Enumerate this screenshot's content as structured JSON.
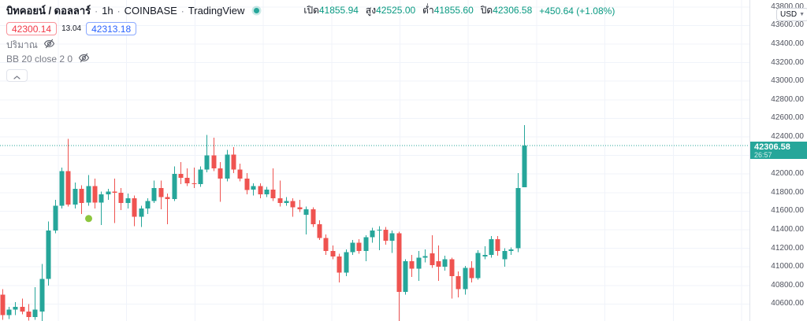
{
  "header": {
    "symbol_title": "บิทคอยน์ / ดอลลาร์",
    "separator": "·",
    "interval": "1h",
    "exchange": "COINBASE",
    "platform": "TradingView",
    "ohlc": {
      "open_label": "เปิด",
      "open_value": "41855.94",
      "high_label": "สูง",
      "high_value": "42525.00",
      "low_label": "ต่ำ",
      "low_value": "41855.60",
      "close_label": "ปิด",
      "close_value": "42306.58",
      "change_value": "+450.64 (+1.08%)"
    },
    "bid": "42300.14",
    "spread": "13.04",
    "ask": "42313.18",
    "indicator_rows": [
      {
        "label": "ปริมาณ",
        "hidden": true
      },
      {
        "label": "BB 20 close 2 0",
        "hidden": true
      }
    ]
  },
  "axis": {
    "currency_label": "USD",
    "last_price_label": "42306.58",
    "countdown": "26:57",
    "ticks": [
      {
        "price": 43800,
        "label": "43800.00"
      },
      {
        "price": 43600,
        "label": "43600.00"
      },
      {
        "price": 43400,
        "label": "43400.00"
      },
      {
        "price": 43200,
        "label": "43200.00"
      },
      {
        "price": 43000,
        "label": "43000.00"
      },
      {
        "price": 42800,
        "label": "42800.00"
      },
      {
        "price": 42600,
        "label": "42600.00"
      },
      {
        "price": 42400,
        "label": "42400.00"
      },
      {
        "price": 42200,
        "label": "42200.00"
      },
      {
        "price": 42000,
        "label": "42000.00"
      },
      {
        "price": 41800,
        "label": "41800.00"
      },
      {
        "price": 41600,
        "label": "41600.00"
      },
      {
        "price": 41400,
        "label": "41400.00"
      },
      {
        "price": 41200,
        "label": "41200.00"
      },
      {
        "price": 41000,
        "label": "41000.00"
      },
      {
        "price": 40800,
        "label": "40800.00"
      },
      {
        "price": 40600,
        "label": "40600.00"
      }
    ]
  },
  "chart_data": {
    "type": "candlestick",
    "title": "บิทคอยน์ / ดอลลาร์ · 1h · COINBASE",
    "interval": "1h",
    "last_price": 42306.58,
    "price_axis_range": [
      40450,
      43850
    ],
    "grid": true,
    "current_bar": {
      "open": 41855.94,
      "high": 42525.0,
      "low": 41855.6,
      "close": 42306.58,
      "change": "+450.64",
      "change_pct": "+1.08%"
    },
    "marker": {
      "candle_index": 13,
      "price": 41520
    },
    "candles_ohlc": [
      [
        40700,
        40760,
        40430,
        40480
      ],
      [
        40480,
        40570,
        40440,
        40540
      ],
      [
        40540,
        40620,
        40480,
        40570
      ],
      [
        40570,
        40660,
        40490,
        40520
      ],
      [
        40520,
        40600,
        40420,
        40460
      ],
      [
        40460,
        40780,
        40430,
        40540
      ],
      [
        40520,
        41030,
        40400,
        40870
      ],
      [
        40870,
        41490,
        40800,
        41390
      ],
      [
        41390,
        41720,
        41360,
        41660
      ],
      [
        41660,
        42070,
        41630,
        42030
      ],
      [
        42030,
        42380,
        41650,
        41670
      ],
      [
        41670,
        41910,
        41630,
        41840
      ],
      [
        41840,
        41880,
        41570,
        41690
      ],
      [
        41690,
        41990,
        41660,
        41870
      ],
      [
        41870,
        41950,
        41630,
        41690
      ],
      [
        41690,
        41810,
        41450,
        41780
      ],
      [
        41780,
        41840,
        41720,
        41810
      ],
      [
        41810,
        41950,
        41470,
        41800
      ],
      [
        41800,
        41850,
        41610,
        41690
      ],
      [
        41690,
        41790,
        41630,
        41740
      ],
      [
        41740,
        41770,
        41440,
        41540
      ],
      [
        41540,
        41660,
        41430,
        41630
      ],
      [
        41630,
        41740,
        41570,
        41710
      ],
      [
        41710,
        41930,
        41690,
        41850
      ],
      [
        41850,
        41930,
        41620,
        41750
      ],
      [
        41750,
        41790,
        41460,
        41730
      ],
      [
        41730,
        42080,
        41710,
        42000
      ],
      [
        42000,
        42130,
        41890,
        41960
      ],
      [
        41960,
        42060,
        41870,
        41900
      ],
      [
        41900,
        42070,
        41850,
        41890
      ],
      [
        41890,
        42080,
        41860,
        42050
      ],
      [
        42050,
        42420,
        42020,
        42200
      ],
      [
        42200,
        42390,
        42030,
        42060
      ],
      [
        42060,
        42130,
        41700,
        41950
      ],
      [
        41950,
        42260,
        41920,
        42210
      ],
      [
        42210,
        42290,
        42010,
        42050
      ],
      [
        42050,
        42110,
        41920,
        41950
      ],
      [
        41950,
        42010,
        41780,
        41830
      ],
      [
        41830,
        41900,
        41770,
        41870
      ],
      [
        41870,
        41900,
        41740,
        41780
      ],
      [
        41780,
        41860,
        41750,
        41830
      ],
      [
        41830,
        42060,
        41710,
        41740
      ],
      [
        41740,
        41930,
        41650,
        41690
      ],
      [
        41690,
        41750,
        41660,
        41710
      ],
      [
        41710,
        41740,
        41540,
        41640
      ],
      [
        41640,
        41720,
        41590,
        41620
      ],
      [
        41560,
        41650,
        41350,
        41620
      ],
      [
        41620,
        41640,
        41430,
        41460
      ],
      [
        41460,
        41500,
        41290,
        41310
      ],
      [
        41310,
        41350,
        41130,
        41170
      ],
      [
        41170,
        41230,
        41080,
        41110
      ],
      [
        41110,
        41140,
        40830,
        40940
      ],
      [
        40940,
        41190,
        40900,
        41160
      ],
      [
        41160,
        41290,
        41130,
        41260
      ],
      [
        41260,
        41300,
        41140,
        41170
      ],
      [
        41170,
        41340,
        41060,
        41320
      ],
      [
        41320,
        41420,
        41260,
        41390
      ],
      [
        41390,
        41440,
        41180,
        41400
      ],
      [
        41400,
        41430,
        41240,
        41280
      ],
      [
        41280,
        41390,
        41150,
        41360
      ],
      [
        41360,
        41380,
        40410,
        40730
      ],
      [
        40730,
        41080,
        40700,
        41060
      ],
      [
        41060,
        41130,
        40890,
        40980
      ],
      [
        40980,
        41170,
        40850,
        41100
      ],
      [
        41100,
        41190,
        41050,
        41115
      ],
      [
        41145,
        41340,
        40990,
        41020
      ],
      [
        41060,
        41230,
        40850,
        41000
      ],
      [
        41000,
        41120,
        40960,
        41080
      ],
      [
        41080,
        41100,
        40660,
        40900
      ],
      [
        40900,
        40950,
        40670,
        40760
      ],
      [
        40760,
        41010,
        40700,
        40990
      ],
      [
        40990,
        41060,
        40830,
        40880
      ],
      [
        40880,
        41180,
        40860,
        41150
      ],
      [
        41110,
        41220,
        41080,
        41130
      ],
      [
        41130,
        41330,
        41100,
        41300
      ],
      [
        41300,
        41330,
        41120,
        41170
      ],
      [
        41080,
        41200,
        41000,
        41170
      ],
      [
        41170,
        41210,
        41130,
        41190
      ],
      [
        41200,
        42010,
        41160,
        41850
      ],
      [
        41855.94,
        42525.0,
        41855.6,
        42306.58
      ]
    ]
  },
  "colors": {
    "up": "#26a69a",
    "down": "#ef5350",
    "grid": "#f0f3fa",
    "price_line": "#26a69a",
    "badge_bg": "#26a69a",
    "value_text": "#089981",
    "title_text": "#131722",
    "muted_text": "#787b86",
    "bid": "#f23645",
    "ask": "#2962ff",
    "status_dot": "#26a69a",
    "marker": "#8dc63f"
  }
}
